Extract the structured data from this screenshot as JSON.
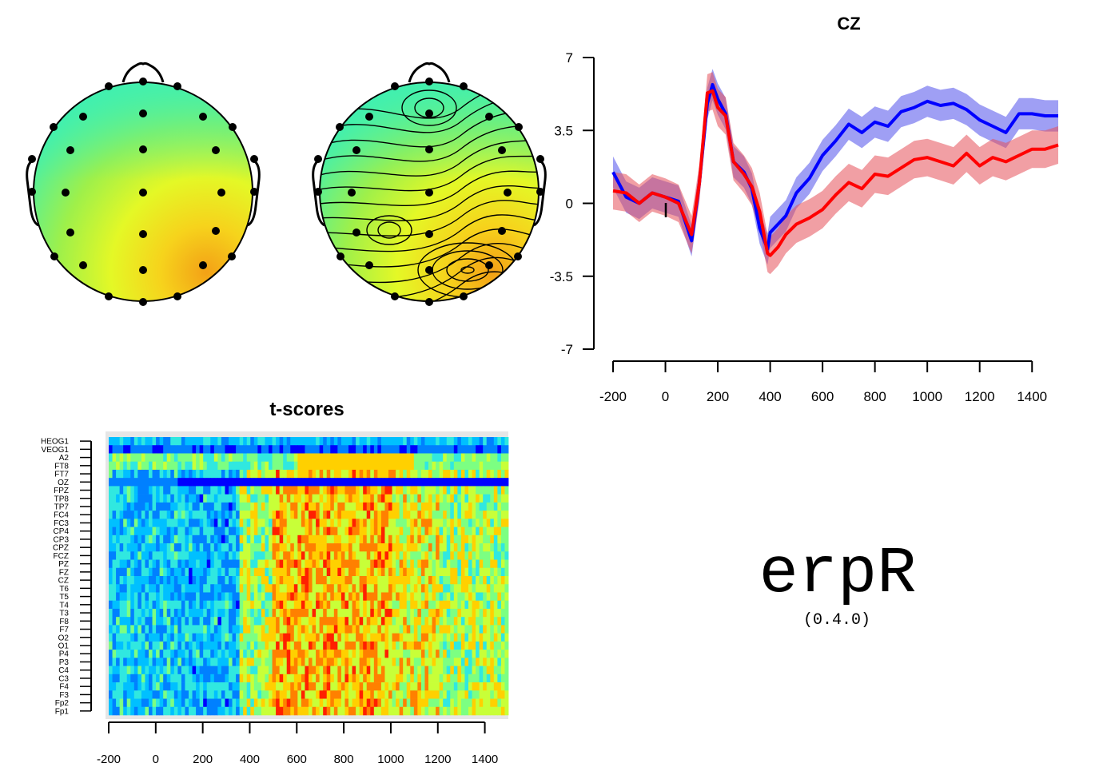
{
  "chart_data": [
    {
      "type": "heatmap",
      "subtype": "scalp-topography",
      "interpolation": "smooth",
      "contours": false,
      "electrodes": [
        "Fp1",
        "Fp2",
        "F7",
        "F3",
        "Fz",
        "F4",
        "F8",
        "T3",
        "C3",
        "Cz",
        "C4",
        "T4",
        "T5",
        "P3",
        "Pz",
        "P4",
        "T6",
        "O1",
        "Oz",
        "O2",
        "FCZ",
        "CPZ",
        "CP3",
        "CP4",
        "FC3",
        "FC4",
        "TP7",
        "TP8",
        "FT7",
        "FT8"
      ],
      "colors": [
        "#40f0b0",
        "#e4f826",
        "#f3a116"
      ]
    },
    {
      "type": "heatmap",
      "subtype": "scalp-topography",
      "interpolation": "smooth",
      "contours": true,
      "colors": [
        "#40f0b0",
        "#e4f826",
        "#f3a116"
      ]
    },
    {
      "type": "line",
      "title": "CZ",
      "xlim": [
        -200,
        1500
      ],
      "ylim": [
        -7,
        7
      ],
      "xticks": [
        -200,
        0,
        200,
        400,
        600,
        800,
        1000,
        1200,
        1400
      ],
      "yticks": [
        "7",
        "3.5",
        "0",
        "-3.5",
        "-7"
      ],
      "confidence_bands": true,
      "series": [
        {
          "color": "#0000ff",
          "x": [
            -200,
            -150,
            -100,
            -50,
            0,
            50,
            100,
            130,
            160,
            180,
            200,
            230,
            260,
            300,
            330,
            360,
            390,
            400,
            430,
            460,
            500,
            550,
            600,
            650,
            700,
            750,
            800,
            850,
            900,
            950,
            1000,
            1050,
            1100,
            1150,
            1200,
            1250,
            1300,
            1350,
            1400,
            1450,
            1500
          ],
          "y": [
            1.5,
            0.3,
            0,
            0.5,
            0.3,
            0.1,
            -1.8,
            1,
            4.8,
            5.7,
            5,
            4.3,
            2,
            1.5,
            0.7,
            -1.2,
            -2.2,
            -1.4,
            -1,
            -0.6,
            0.5,
            1.2,
            2.3,
            3,
            3.8,
            3.4,
            3.9,
            3.7,
            4.4,
            4.6,
            4.9,
            4.7,
            4.8,
            4.5,
            4,
            3.7,
            3.4,
            4.3,
            4.3,
            4.2,
            4.2
          ]
        },
        {
          "color": "#ff0000",
          "x": [
            -200,
            -150,
            -100,
            -50,
            0,
            50,
            100,
            130,
            160,
            180,
            200,
            230,
            260,
            300,
            330,
            360,
            390,
            400,
            430,
            460,
            500,
            550,
            600,
            650,
            700,
            750,
            800,
            850,
            900,
            950,
            1000,
            1050,
            1100,
            1150,
            1200,
            1250,
            1300,
            1350,
            1400,
            1450,
            1500
          ],
          "y": [
            0.6,
            0.5,
            0,
            0.5,
            0.3,
            0,
            -1.5,
            1,
            5.3,
            5.4,
            4.6,
            4.2,
            2,
            1.4,
            0.8,
            -0.4,
            -2.4,
            -2.5,
            -2.1,
            -1.5,
            -1,
            -0.7,
            -0.3,
            0.4,
            1,
            0.7,
            1.4,
            1.3,
            1.7,
            2.1,
            2.2,
            2,
            1.8,
            2.4,
            1.8,
            2.2,
            2,
            2.3,
            2.6,
            2.6,
            2.8
          ]
        }
      ]
    },
    {
      "type": "heatmap",
      "title": "t-scores",
      "xlim": [
        -200,
        1500
      ],
      "xticks": [
        -200,
        0,
        200,
        400,
        600,
        800,
        1000,
        1200,
        1400
      ],
      "rows": [
        "HEOG1",
        "VEOG1",
        "A2",
        "FT8",
        "FT7",
        "OZ",
        "FPZ",
        "TP8",
        "TP7",
        "FC4",
        "FC3",
        "CP4",
        "CP3",
        "CPZ",
        "FCZ",
        "PZ",
        "FZ",
        "CZ",
        "T6",
        "T5",
        "T4",
        "T3",
        "F8",
        "F7",
        "O2",
        "O1",
        "P4",
        "P3",
        "C4",
        "C3",
        "F4",
        "F3",
        "Fp2",
        "Fp1"
      ],
      "colors": [
        "#00007f",
        "#0000ff",
        "#0080ff",
        "#00c0ff",
        "#30e8e0",
        "#7cff82",
        "#c8ff38",
        "#ffd000",
        "#ff8000",
        "#ff2000",
        "#a00000"
      ]
    }
  ],
  "logo": {
    "name": "erpR",
    "version": "(0.4.0)"
  }
}
